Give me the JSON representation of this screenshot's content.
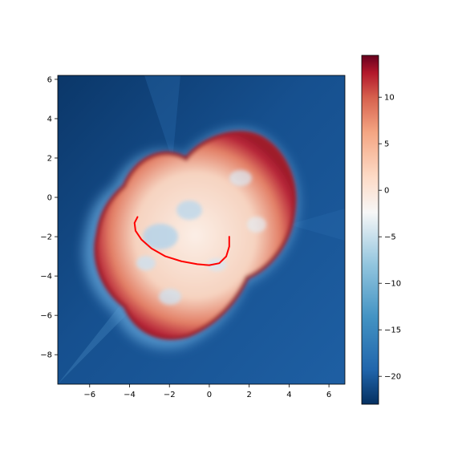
{
  "chart_data": {
    "type": "heatmap",
    "title": "",
    "xlabel": "",
    "ylabel": "",
    "xlim": [
      -7.6,
      6.8
    ],
    "ylim": [
      -9.5,
      6.2
    ],
    "x_ticks": [
      -6,
      -4,
      -2,
      0,
      2,
      4,
      6
    ],
    "y_ticks": [
      -8,
      -6,
      -4,
      -2,
      0,
      2,
      4,
      6
    ],
    "grid": false,
    "colormap": "RdBu_r",
    "colorbar": {
      "range": [
        -23,
        14.5
      ],
      "ticks": [
        -20,
        -15,
        -10,
        -5,
        0,
        5,
        10
      ]
    },
    "blob_center": [
      0.2,
      -2.0
    ],
    "series": [
      {
        "type": "line",
        "color": "#ff0000",
        "x": [
          -3.6,
          -3.75,
          -3.7,
          -3.4,
          -2.9,
          -2.2,
          -1.4,
          -0.6,
          0.0,
          0.5,
          0.85,
          1.0,
          1.0
        ],
        "y": [
          -1.0,
          -1.3,
          -1.7,
          -2.15,
          -2.6,
          -3.0,
          -3.25,
          -3.4,
          -3.45,
          -3.35,
          -3.0,
          -2.5,
          -2.0
        ]
      }
    ],
    "colors": {
      "field_dark": "#0a3466",
      "field_mid": "#1d5fa6",
      "field_light": "#3f85c0",
      "blob_edge": "#9e1a2a",
      "blob_inner": "#f8e4d9",
      "curve": "#ff0000"
    }
  }
}
